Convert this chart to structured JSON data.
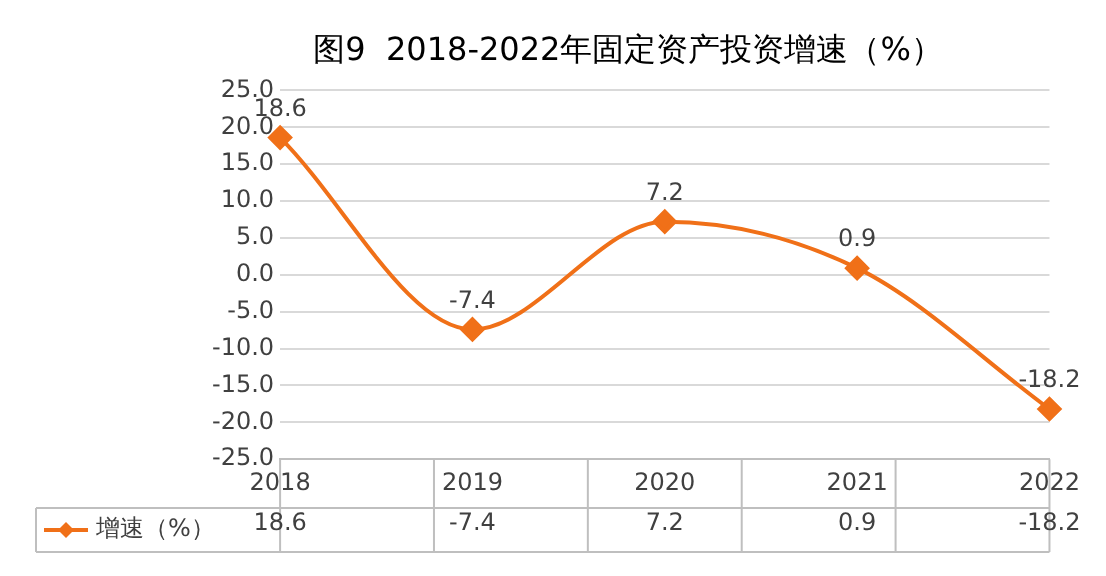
{
  "chart_data": {
    "type": "line",
    "title": "图9  2018-2022年固定资产投资增速（%）",
    "categories": [
      "2018",
      "2019",
      "2020",
      "2021",
      "2022"
    ],
    "series": [
      {
        "name": "增速（%）",
        "color": "#f07018",
        "values": [
          18.6,
          -7.4,
          7.2,
          0.9,
          -18.2
        ]
      }
    ],
    "annotations": [
      {
        "text": "18.6",
        "x": "2018",
        "y": 18.6
      },
      {
        "text": "-7.4",
        "x": "2019",
        "y": -7.4
      },
      {
        "text": "7.2",
        "x": "2020",
        "y": 7.2
      },
      {
        "text": "0.9",
        "x": "2021",
        "y": 0.9
      },
      {
        "text": "-18.2",
        "x": "2022",
        "y": -18.2
      }
    ],
    "ylim": [
      -25,
      25
    ],
    "yticks": [
      {
        "value": -25,
        "label": "-25.0"
      },
      {
        "value": -20,
        "label": "-20.0"
      },
      {
        "value": -15,
        "label": "-15.0"
      },
      {
        "value": -10,
        "label": "-10.0"
      },
      {
        "value": -5,
        "label": "-5.0"
      },
      {
        "value": 0,
        "label": "0.0"
      },
      {
        "value": 5,
        "label": "5.0"
      },
      {
        "value": 10,
        "label": "10.0"
      },
      {
        "value": 15,
        "label": "15.0"
      },
      {
        "value": 20,
        "label": "20.0"
      },
      {
        "value": 25,
        "label": "25.0"
      }
    ],
    "grid": "y",
    "marker": "diamond",
    "line_style": "solid",
    "data_labels": true
  }
}
